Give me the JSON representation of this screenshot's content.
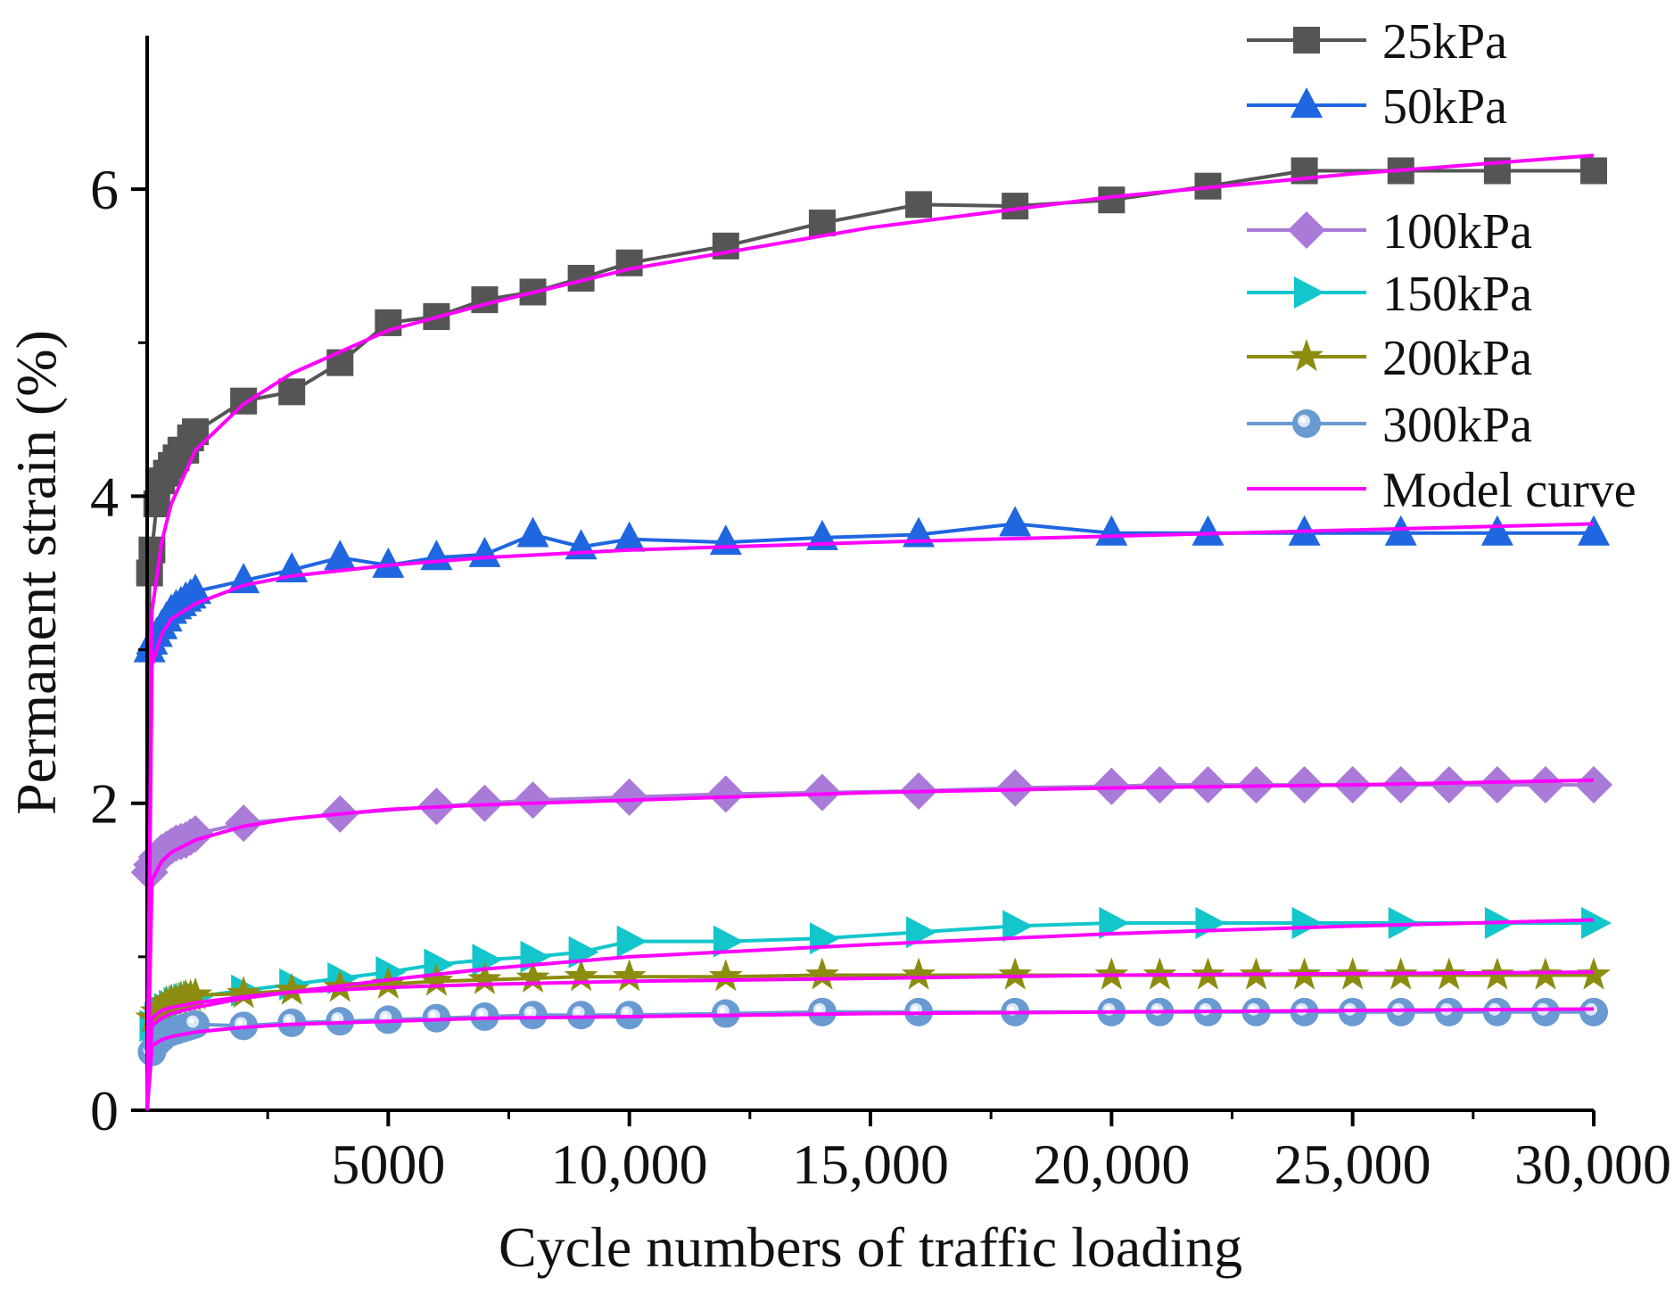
{
  "chart_data": {
    "type": "line",
    "xlabel": "Cycle numbers of traffic loading",
    "ylabel": "Permanent strain (%)",
    "xlim": [
      0,
      30000
    ],
    "ylim": [
      0,
      7
    ],
    "x_ticks": [
      {
        "value": 5000,
        "label": "5000"
      },
      {
        "value": 10000,
        "label": "10,000"
      },
      {
        "value": 15000,
        "label": "15,000"
      },
      {
        "value": 20000,
        "label": "20,000"
      },
      {
        "value": 25000,
        "label": "25,000"
      },
      {
        "value": 30000,
        "label": "30,000"
      }
    ],
    "y_ticks": [
      {
        "value": 0,
        "label": "0"
      },
      {
        "value": 2,
        "label": "2"
      },
      {
        "value": 4,
        "label": "4"
      },
      {
        "value": 6,
        "label": "6"
      }
    ],
    "legend_position": "top-right",
    "series": [
      {
        "name": "25kPa",
        "color": "#555555",
        "marker": "square",
        "x": [
          0,
          50,
          100,
          200,
          300,
          400,
          500,
          600,
          700,
          800,
          900,
          1000,
          2000,
          3000,
          4000,
          5000,
          6000,
          7000,
          8000,
          9000,
          10000,
          12000,
          14000,
          16000,
          18000,
          20000,
          22000,
          24000,
          26000,
          28000,
          30000
        ],
        "y": [
          0,
          3.5,
          3.65,
          3.95,
          4.1,
          4.15,
          4.2,
          4.25,
          4.3,
          4.3,
          4.38,
          4.42,
          4.62,
          4.68,
          4.87,
          5.13,
          5.17,
          5.28,
          5.33,
          5.42,
          5.52,
          5.63,
          5.78,
          5.9,
          5.89,
          5.93,
          6.02,
          6.12,
          6.12,
          6.12,
          6.12
        ]
      },
      {
        "name": "50kPa",
        "color": "#1f66e0",
        "marker": "triangle-up",
        "x": [
          0,
          50,
          100,
          200,
          300,
          400,
          500,
          600,
          700,
          800,
          900,
          1000,
          2000,
          3000,
          4000,
          5000,
          6000,
          7000,
          8000,
          9000,
          10000,
          12000,
          14000,
          16000,
          18000,
          20000,
          22000,
          24000,
          26000,
          28000,
          30000
        ],
        "y": [
          0,
          3.0,
          3.05,
          3.1,
          3.15,
          3.2,
          3.25,
          3.28,
          3.3,
          3.33,
          3.35,
          3.38,
          3.45,
          3.52,
          3.6,
          3.55,
          3.6,
          3.62,
          3.75,
          3.67,
          3.72,
          3.7,
          3.73,
          3.75,
          3.82,
          3.76,
          3.76,
          3.76,
          3.76,
          3.76,
          3.76
        ]
      },
      {
        "name": "100kPa",
        "color": "#a97ad8",
        "marker": "diamond",
        "x": [
          0,
          50,
          100,
          200,
          300,
          400,
          500,
          600,
          700,
          800,
          900,
          1000,
          2000,
          4000,
          6000,
          7000,
          8000,
          10000,
          12000,
          14000,
          16000,
          18000,
          20000,
          21000,
          22000,
          23000,
          24000,
          25000,
          26000,
          27000,
          28000,
          29000,
          30000
        ],
        "y": [
          0,
          1.55,
          1.6,
          1.65,
          1.68,
          1.7,
          1.72,
          1.74,
          1.75,
          1.76,
          1.78,
          1.8,
          1.87,
          1.93,
          1.98,
          2.0,
          2.02,
          2.04,
          2.06,
          2.07,
          2.08,
          2.1,
          2.11,
          2.12,
          2.12,
          2.12,
          2.12,
          2.12,
          2.12,
          2.12,
          2.12,
          2.12,
          2.12
        ]
      },
      {
        "name": "150kPa",
        "color": "#13c6cb",
        "marker": "triangle-right",
        "x": [
          0,
          100,
          200,
          300,
          400,
          500,
          600,
          700,
          800,
          900,
          1000,
          2000,
          3000,
          4000,
          5000,
          6000,
          7000,
          8000,
          9000,
          10000,
          12000,
          14000,
          16000,
          18000,
          20000,
          22000,
          24000,
          26000,
          28000,
          30000
        ],
        "y": [
          0,
          0.55,
          0.6,
          0.63,
          0.66,
          0.68,
          0.7,
          0.71,
          0.72,
          0.73,
          0.74,
          0.78,
          0.82,
          0.86,
          0.9,
          0.95,
          0.98,
          1.0,
          1.03,
          1.1,
          1.1,
          1.12,
          1.16,
          1.2,
          1.22,
          1.22,
          1.22,
          1.22,
          1.22,
          1.22
        ]
      },
      {
        "name": "200kPa",
        "color": "#8c8c10",
        "marker": "star",
        "x": [
          0,
          100,
          200,
          300,
          400,
          500,
          600,
          700,
          800,
          900,
          1000,
          2000,
          3000,
          4000,
          5000,
          6000,
          7000,
          8000,
          9000,
          10000,
          12000,
          14000,
          16000,
          18000,
          20000,
          21000,
          22000,
          23000,
          24000,
          25000,
          26000,
          27000,
          28000,
          29000,
          30000
        ],
        "y": [
          0,
          0.6,
          0.64,
          0.67,
          0.7,
          0.71,
          0.72,
          0.73,
          0.74,
          0.74,
          0.75,
          0.76,
          0.78,
          0.8,
          0.82,
          0.84,
          0.85,
          0.86,
          0.87,
          0.87,
          0.87,
          0.88,
          0.88,
          0.88,
          0.88,
          0.88,
          0.88,
          0.88,
          0.88,
          0.88,
          0.88,
          0.88,
          0.88,
          0.88,
          0.88
        ]
      },
      {
        "name": "300kPa",
        "color": "#6a9ad2",
        "marker": "circle",
        "x": [
          0,
          100,
          200,
          300,
          400,
          500,
          600,
          700,
          800,
          900,
          1000,
          2000,
          3000,
          4000,
          5000,
          6000,
          7000,
          8000,
          9000,
          10000,
          12000,
          14000,
          16000,
          18000,
          20000,
          21000,
          22000,
          23000,
          24000,
          25000,
          26000,
          27000,
          28000,
          29000,
          30000
        ],
        "y": [
          0,
          0.38,
          0.44,
          0.47,
          0.5,
          0.51,
          0.52,
          0.53,
          0.54,
          0.55,
          0.56,
          0.55,
          0.57,
          0.58,
          0.59,
          0.6,
          0.61,
          0.62,
          0.62,
          0.62,
          0.63,
          0.64,
          0.64,
          0.64,
          0.64,
          0.64,
          0.64,
          0.64,
          0.64,
          0.64,
          0.64,
          0.64,
          0.64,
          0.64,
          0.64
        ]
      }
    ],
    "model_curves": {
      "name": "Model curve",
      "color": "#ff00ff",
      "x": [
        0,
        100,
        300,
        500,
        1000,
        2000,
        3000,
        5000,
        7000,
        10000,
        15000,
        20000,
        25000,
        30000
      ],
      "curves": [
        {
          "y": [
            0,
            3.25,
            3.7,
            3.95,
            4.3,
            4.6,
            4.8,
            5.08,
            5.25,
            5.48,
            5.75,
            5.95,
            6.1,
            6.22
          ]
        },
        {
          "y": [
            0,
            2.9,
            3.1,
            3.2,
            3.3,
            3.42,
            3.48,
            3.55,
            3.6,
            3.65,
            3.7,
            3.74,
            3.78,
            3.82
          ]
        },
        {
          "y": [
            0,
            1.5,
            1.62,
            1.68,
            1.76,
            1.85,
            1.9,
            1.96,
            1.99,
            2.02,
            2.07,
            2.1,
            2.12,
            2.15
          ]
        },
        {
          "y": [
            0,
            0.55,
            0.6,
            0.63,
            0.67,
            0.73,
            0.77,
            0.85,
            0.92,
            1.0,
            1.08,
            1.15,
            1.2,
            1.24
          ]
        },
        {
          "y": [
            0,
            0.6,
            0.65,
            0.67,
            0.7,
            0.74,
            0.77,
            0.8,
            0.82,
            0.84,
            0.86,
            0.88,
            0.89,
            0.9
          ]
        },
        {
          "y": [
            0,
            0.42,
            0.46,
            0.48,
            0.51,
            0.54,
            0.56,
            0.58,
            0.6,
            0.61,
            0.63,
            0.64,
            0.65,
            0.66
          ]
        }
      ]
    }
  }
}
